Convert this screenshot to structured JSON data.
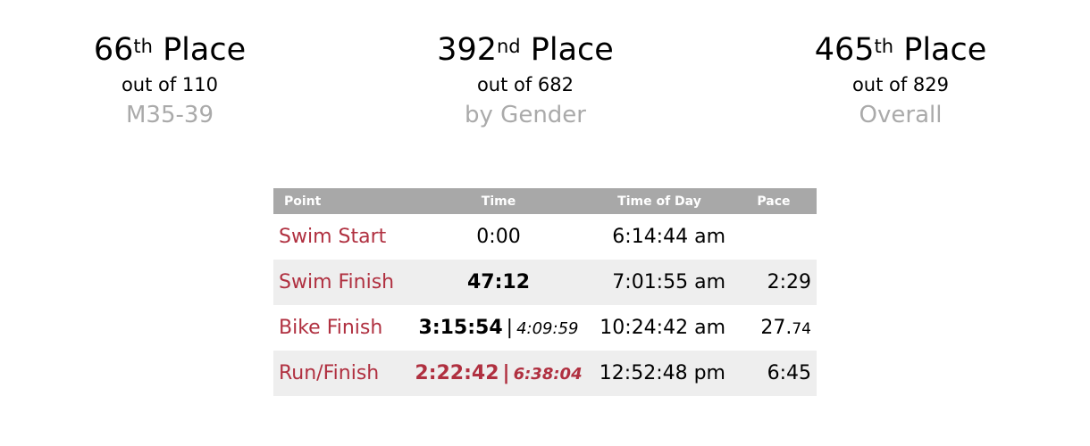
{
  "ranks": [
    {
      "place": "66",
      "suffix": "th",
      "place_word": "Place",
      "out_of": "out of 110",
      "category": "M35-39"
    },
    {
      "place": "392",
      "suffix": "nd",
      "place_word": "Place",
      "out_of": "out of 682",
      "category": "by Gender"
    },
    {
      "place": "465",
      "suffix": "th",
      "place_word": "Place",
      "out_of": "out of 829",
      "category": "Overall"
    }
  ],
  "table": {
    "headers": [
      "Point",
      "Time",
      "Time of Day",
      "Pace"
    ],
    "rows": [
      {
        "point": "Swim Start",
        "time": "0:00",
        "cumulative": "",
        "time_of_day": "6:14:44 am",
        "pace": "",
        "pace_small": ""
      },
      {
        "point": "Swim Finish",
        "time": "47:12",
        "cumulative": "",
        "time_of_day": "7:01:55 am",
        "pace": "2:29",
        "pace_small": ""
      },
      {
        "point": "Bike Finish",
        "time": "3:15:54",
        "cumulative": "4:09:59",
        "time_of_day": "10:24:42 am",
        "pace": "27.",
        "pace_small": "74"
      },
      {
        "point": "Run/Finish",
        "time": "2:22:42",
        "cumulative": "6:38:04",
        "time_of_day": "12:52:48 pm",
        "pace": "6:45",
        "pace_small": ""
      }
    ]
  },
  "colors": {
    "accent": "#b03040",
    "header_bg": "#a8a8a8",
    "stripe": "#eeeeee",
    "muted": "#aaaaaa"
  }
}
